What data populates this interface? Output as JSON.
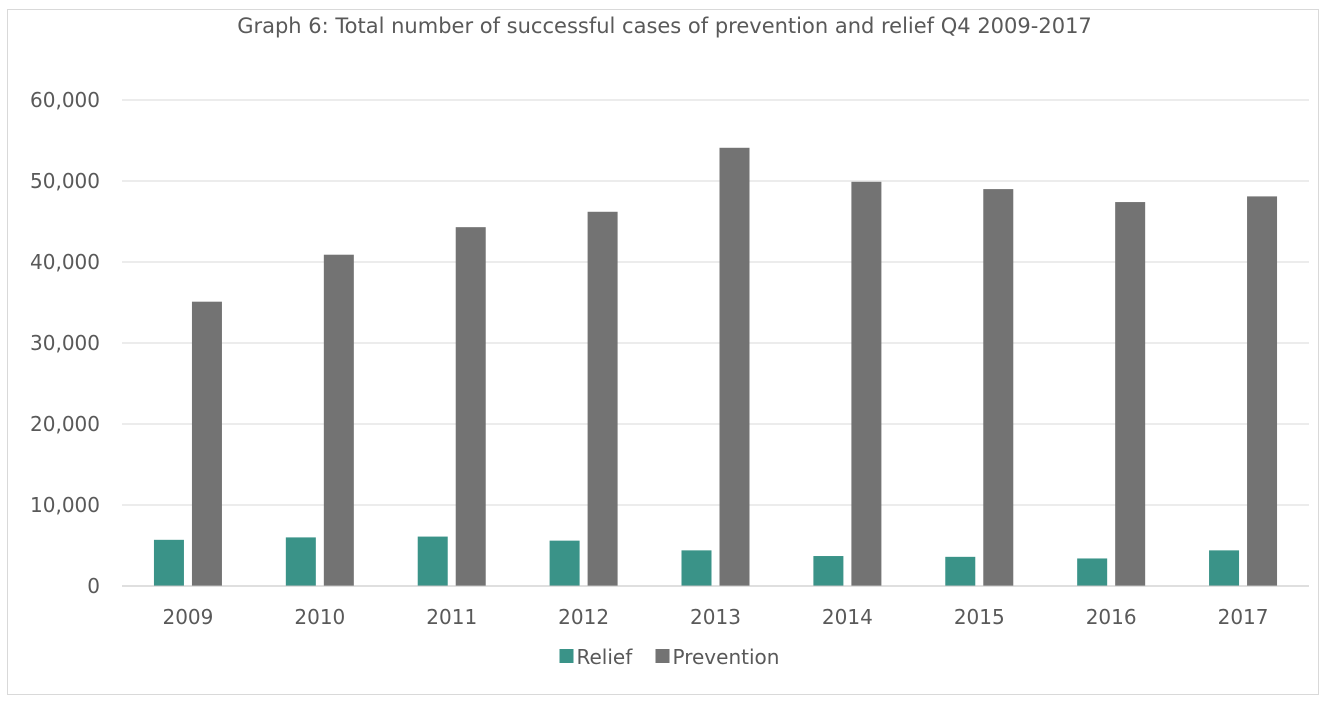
{
  "chart_data": {
    "type": "bar",
    "title": "Graph 6: Total number of successful cases of prevention and relief Q4 2009-2017",
    "categories": [
      "2009",
      "2010",
      "2011",
      "2012",
      "2013",
      "2014",
      "2015",
      "2016",
      "2017"
    ],
    "series": [
      {
        "name": "Relief",
        "color": "#3a9388",
        "values": [
          5700,
          6000,
          6100,
          5600,
          4400,
          3700,
          3600,
          3400,
          4400
        ]
      },
      {
        "name": "Prevention",
        "color": "#737373",
        "values": [
          35100,
          40900,
          44300,
          46200,
          54100,
          49900,
          49000,
          47400,
          48100
        ]
      }
    ],
    "ylim": [
      0,
      60000
    ],
    "yticks": [
      0,
      10000,
      20000,
      30000,
      40000,
      50000,
      60000
    ],
    "ytick_labels": [
      "0",
      "10,000",
      "20,000",
      "30,000",
      "40,000",
      "50,000",
      "60,000"
    ],
    "grid": true,
    "legend": "bottom-center",
    "xlabel": "",
    "ylabel": ""
  }
}
